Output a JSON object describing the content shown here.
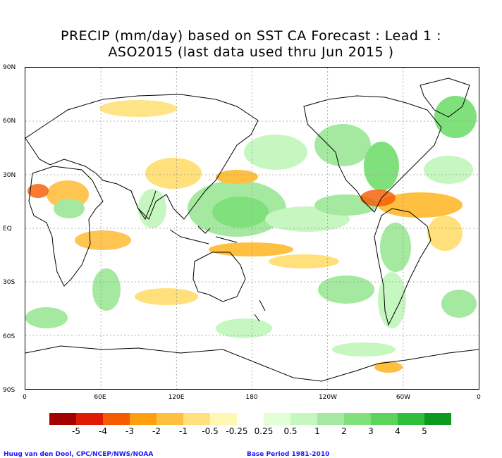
{
  "title_line1": "PRECIP (mm/day) based on SST CA Forecast : Lead 1 :",
  "title_line2": "ASO2015 (last data used thru Jun 2015 )",
  "lat_labels": [
    "90N",
    "60N",
    "30N",
    "EQ",
    "30S",
    "60S",
    "90S"
  ],
  "lon_labels": [
    "0",
    "60E",
    "120E",
    "180",
    "120W",
    "60W",
    "0"
  ],
  "legend": {
    "labels": [
      "-5",
      "-4",
      "-3",
      "-2",
      "-1",
      "-0.5",
      "-0.25",
      "0.25",
      "0.5",
      "1",
      "2",
      "3",
      "4",
      "5"
    ],
    "colors": [
      "#a50000",
      "#e01a00",
      "#f55a00",
      "#ff9f10",
      "#ffbf40",
      "#ffe07a",
      "#fff8b0",
      "#ffffff",
      "#e2ffd8",
      "#c6f7c0",
      "#a5e8a0",
      "#80e07c",
      "#5cd45c",
      "#2fbf3a",
      "#0c9a20"
    ]
  },
  "credit_left": "Huug van den Dool, CPC/NCEP/NWS/NOAA",
  "credit_right": "Base Period 1981-2010",
  "colors": {
    "coast": "#000000",
    "grid": "#9a9a9a",
    "title": "#000000",
    "credit": "#1a1aff"
  }
}
